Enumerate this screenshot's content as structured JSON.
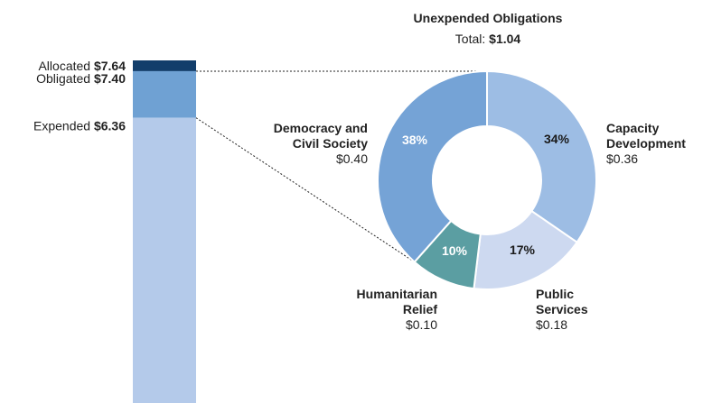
{
  "chart_data": [
    {
      "type": "bar",
      "orientation": "stacked-vertical",
      "unit": "$",
      "levels": [
        {
          "label": "Allocated",
          "value": 7.64,
          "display": "$7.64",
          "color": "#123e6b"
        },
        {
          "label": "Obligated",
          "value": 7.4,
          "display": "$7.40",
          "color": "#6fa1d3"
        },
        {
          "label": "Expended",
          "value": 6.36,
          "display": "$6.36",
          "color": "#b4caea"
        }
      ]
    },
    {
      "type": "pie",
      "variant": "donut",
      "title": "Unexpended Obligations",
      "total_label": "Total:",
      "total_value": "$1.04",
      "slices": [
        {
          "name_lines": [
            "Capacity",
            "Development"
          ],
          "value": 0.36,
          "value_label": "$0.36",
          "percent": 34,
          "percent_label": "34%",
          "color": "#9dbde4",
          "pct_color": "#1a1a1a"
        },
        {
          "name_lines": [
            "Public",
            "Services"
          ],
          "value": 0.18,
          "value_label": "$0.18",
          "percent": 17,
          "percent_label": "17%",
          "color": "#cdd9f0",
          "pct_color": "#1a1a1a"
        },
        {
          "name_lines": [
            "Humanitarian",
            "Relief"
          ],
          "value": 0.1,
          "value_label": "$0.10",
          "percent": 10,
          "percent_label": "10%",
          "color": "#5b9ea2",
          "pct_color": "#ffffff"
        },
        {
          "name_lines": [
            "Democracy and",
            "Civil Society"
          ],
          "value": 0.4,
          "value_label": "$0.40",
          "percent": 38,
          "percent_label": "38%",
          "color": "#75a3d6",
          "pct_color": "#ffffff"
        }
      ]
    }
  ]
}
